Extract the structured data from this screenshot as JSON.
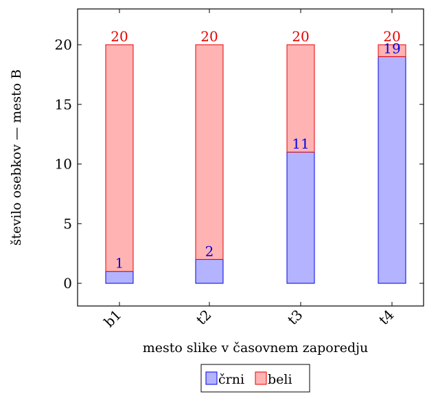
{
  "chart_data": {
    "type": "bar",
    "stacked": true,
    "categories": [
      "b1",
      "t2",
      "t3",
      "t4"
    ],
    "series": [
      {
        "name": "črni",
        "values": [
          1,
          2,
          11,
          19
        ],
        "fill": "#b3b3ff",
        "stroke": "#0000e6",
        "label_color": "#0000e6"
      },
      {
        "name": "beli",
        "values": [
          19,
          18,
          9,
          1
        ],
        "fill": "#ffb3b3",
        "stroke": "#e60000",
        "label_color": "#e60000"
      }
    ],
    "data_labels": {
      "črni": [
        "1",
        "2",
        "11",
        "19"
      ],
      "beli": [
        "20",
        "20",
        "20",
        "20"
      ]
    },
    "ylim": [
      -1.9,
      23
    ],
    "yticks": [
      0,
      5,
      10,
      15,
      20
    ],
    "ytick_labels": [
      "0",
      "5",
      "10",
      "15",
      "20"
    ],
    "xlabel": "mesto slike v časovnem zaporedju",
    "ylabel": "število osebkov — mesto B",
    "legend": {
      "position": "bottom-center",
      "entries": [
        "črni",
        "beli"
      ]
    },
    "grid": false
  }
}
